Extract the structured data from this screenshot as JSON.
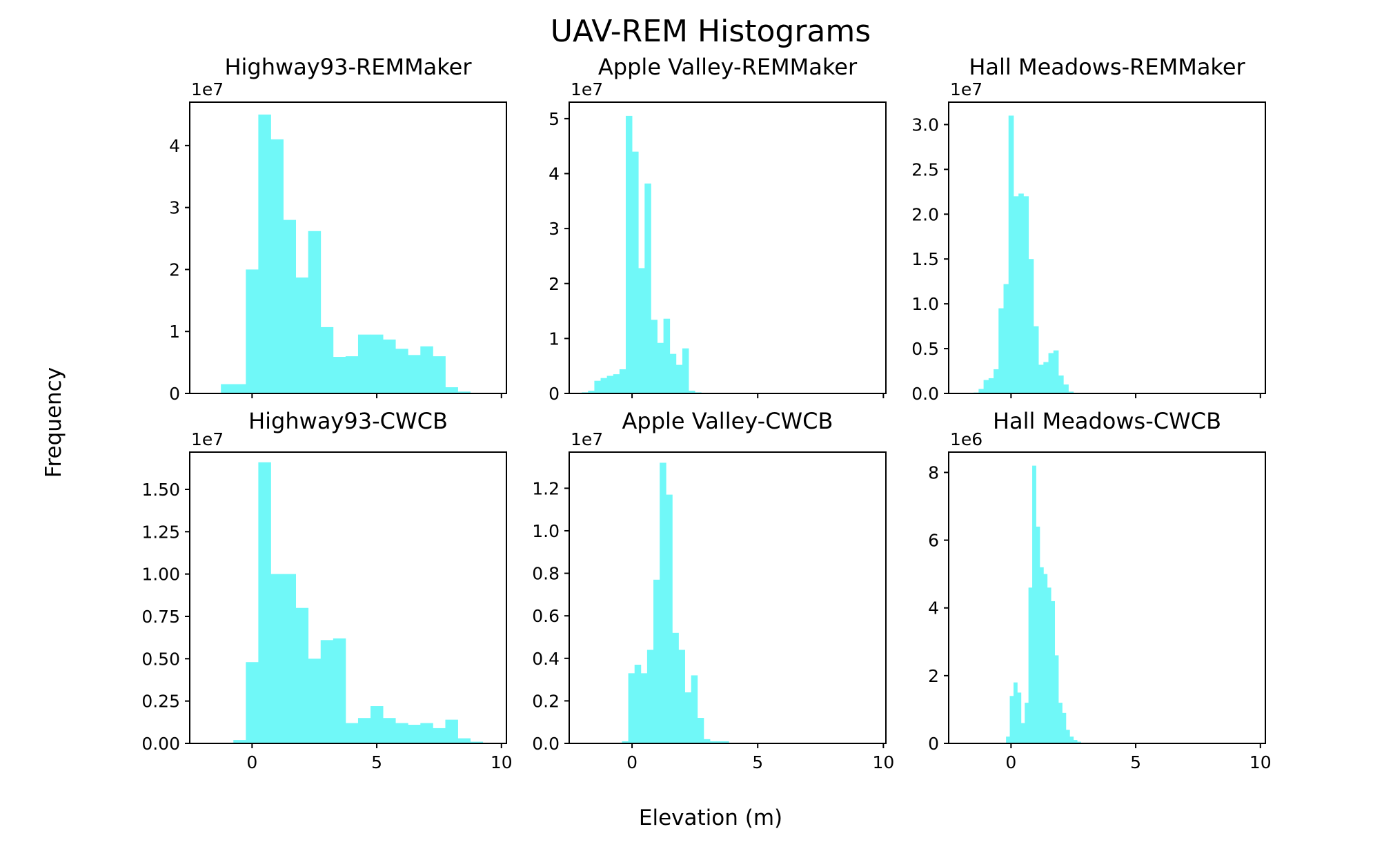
{
  "figure": {
    "title": "UAV-REM Histograms",
    "xlabel": "Elevation (m)",
    "ylabel": "Frequency",
    "bar_color": "#70F8F8"
  },
  "chart_data": [
    {
      "type": "bar",
      "title": "Highway93-REMMaker",
      "xlim": [
        -2.5,
        10.2
      ],
      "ylim": [
        0,
        4.7
      ],
      "offset_label": "1e7",
      "xticks": [],
      "yticks": [
        0,
        1,
        2,
        3,
        4
      ],
      "ytick_labels": [
        "0",
        "1",
        "2",
        "3",
        "4"
      ],
      "bin_edges": [
        -1.25,
        -0.75,
        -0.25,
        0.25,
        0.75,
        1.25,
        1.75,
        2.25,
        2.75,
        3.25,
        3.75,
        4.25,
        4.75,
        5.25,
        5.75,
        6.25,
        6.75,
        7.25,
        7.75,
        8.25,
        8.75,
        9.25
      ],
      "values": [
        0.15,
        0.15,
        2.0,
        4.5,
        4.1,
        2.8,
        1.87,
        2.62,
        1.07,
        0.59,
        0.6,
        0.95,
        0.95,
        0.87,
        0.72,
        0.62,
        0.76,
        0.6,
        0.1,
        0.03,
        0.01
      ]
    },
    {
      "type": "bar",
      "title": "Apple Valley-REMMaker",
      "xlim": [
        -2.5,
        10.1
      ],
      "ylim": [
        0,
        5.3
      ],
      "offset_label": "1e7",
      "xticks": [],
      "yticks": [
        0,
        1,
        2,
        3,
        4,
        5
      ],
      "ytick_labels": [
        "0",
        "1",
        "2",
        "3",
        "4",
        "5"
      ],
      "bin_edges": [
        -2.0,
        -1.75,
        -1.5,
        -1.25,
        -1.0,
        -0.75,
        -0.5,
        -0.25,
        0.0,
        0.25,
        0.5,
        0.75,
        1.0,
        1.25,
        1.5,
        1.75,
        2.0,
        2.25,
        2.5,
        2.75,
        3.0,
        3.25
      ],
      "values": [
        0.02,
        0.05,
        0.23,
        0.28,
        0.32,
        0.35,
        0.44,
        5.05,
        4.4,
        2.28,
        3.82,
        1.34,
        0.92,
        1.36,
        0.72,
        0.52,
        0.82,
        0.05,
        0.02,
        0.01,
        0.01
      ]
    },
    {
      "type": "bar",
      "title": "Hall Meadows-REMMaker",
      "xlim": [
        -2.5,
        10.2
      ],
      "ylim": [
        0,
        3.25
      ],
      "offset_label": "1e7",
      "xticks": [],
      "yticks": [
        0,
        0.5,
        1.0,
        1.5,
        2.0,
        2.5,
        3.0
      ],
      "ytick_labels": [
        "0.0",
        "0.5",
        "1.0",
        "1.5",
        "2.0",
        "2.5",
        "3.0"
      ],
      "bin_edges": [
        -1.5,
        -1.3,
        -1.1,
        -0.9,
        -0.7,
        -0.5,
        -0.3,
        -0.1,
        0.1,
        0.3,
        0.5,
        0.7,
        0.9,
        1.1,
        1.3,
        1.5,
        1.7,
        1.9,
        2.1,
        2.3,
        2.5
      ],
      "values": [
        0.01,
        0.05,
        0.15,
        0.17,
        0.27,
        0.95,
        1.22,
        3.1,
        2.2,
        2.23,
        2.2,
        1.5,
        0.75,
        0.32,
        0.35,
        0.45,
        0.48,
        0.2,
        0.1,
        0.02
      ]
    },
    {
      "type": "bar",
      "title": "Highway93-CWCB",
      "xlim": [
        -2.5,
        10.2
      ],
      "ylim": [
        0,
        1.72
      ],
      "offset_label": "1e7",
      "xticks": [
        0,
        5,
        10
      ],
      "xtick_labels": [
        "0",
        "5",
        "10"
      ],
      "yticks": [
        0,
        0.25,
        0.5,
        0.75,
        1.0,
        1.25,
        1.5
      ],
      "ytick_labels": [
        "0.00",
        "0.25",
        "0.50",
        "0.75",
        "1.00",
        "1.25",
        "1.50"
      ],
      "bin_edges": [
        -0.75,
        -0.25,
        0.25,
        0.75,
        1.25,
        1.75,
        2.25,
        2.75,
        3.25,
        3.75,
        4.25,
        4.75,
        5.25,
        5.75,
        6.25,
        6.75,
        7.25,
        7.75,
        8.25,
        8.75,
        9.25
      ],
      "values": [
        0.02,
        0.48,
        1.66,
        1.0,
        1.0,
        0.8,
        0.5,
        0.61,
        0.62,
        0.12,
        0.15,
        0.22,
        0.15,
        0.12,
        0.11,
        0.12,
        0.09,
        0.14,
        0.03,
        0.01
      ]
    },
    {
      "type": "bar",
      "title": "Apple Valley-CWCB",
      "xlim": [
        -2.5,
        10.1
      ],
      "ylim": [
        0,
        1.37
      ],
      "offset_label": "1e7",
      "xticks": [
        0,
        5,
        10
      ],
      "xtick_labels": [
        "0",
        "5",
        "10"
      ],
      "yticks": [
        0,
        0.2,
        0.4,
        0.6,
        0.8,
        1.0,
        1.2
      ],
      "ytick_labels": [
        "0.0",
        "0.2",
        "0.4",
        "0.6",
        "0.8",
        "1.0",
        "1.2"
      ],
      "bin_edges": [
        -0.4,
        -0.15,
        0.1,
        0.35,
        0.6,
        0.85,
        1.1,
        1.35,
        1.6,
        1.85,
        2.1,
        2.35,
        2.6,
        2.85,
        3.1,
        3.35,
        3.6,
        3.85
      ],
      "values": [
        0.01,
        0.33,
        0.37,
        0.33,
        0.44,
        0.77,
        1.32,
        1.17,
        0.52,
        0.44,
        0.24,
        0.32,
        0.12,
        0.02,
        0.01,
        0.01,
        0.01
      ]
    },
    {
      "type": "bar",
      "title": "Hall Meadows-CWCB",
      "xlim": [
        -2.5,
        10.2
      ],
      "ylim": [
        0,
        8.6
      ],
      "offset_label": "1e6",
      "xticks": [
        0,
        5,
        10
      ],
      "xtick_labels": [
        "0",
        "5",
        "10"
      ],
      "yticks": [
        0,
        2,
        4,
        6,
        8
      ],
      "ytick_labels": [
        "0",
        "2",
        "4",
        "6",
        "8"
      ],
      "bin_edges": [
        -0.2,
        -0.05,
        0.1,
        0.25,
        0.4,
        0.55,
        0.7,
        0.85,
        1.0,
        1.15,
        1.3,
        1.45,
        1.6,
        1.75,
        1.9,
        2.05,
        2.2,
        2.35,
        2.5,
        2.65,
        2.8
      ],
      "values": [
        0.2,
        1.4,
        1.8,
        1.5,
        0.6,
        1.2,
        4.6,
        8.2,
        6.4,
        5.2,
        5.0,
        4.6,
        4.2,
        2.6,
        1.2,
        0.9,
        0.4,
        0.2,
        0.1,
        0.05
      ]
    }
  ]
}
